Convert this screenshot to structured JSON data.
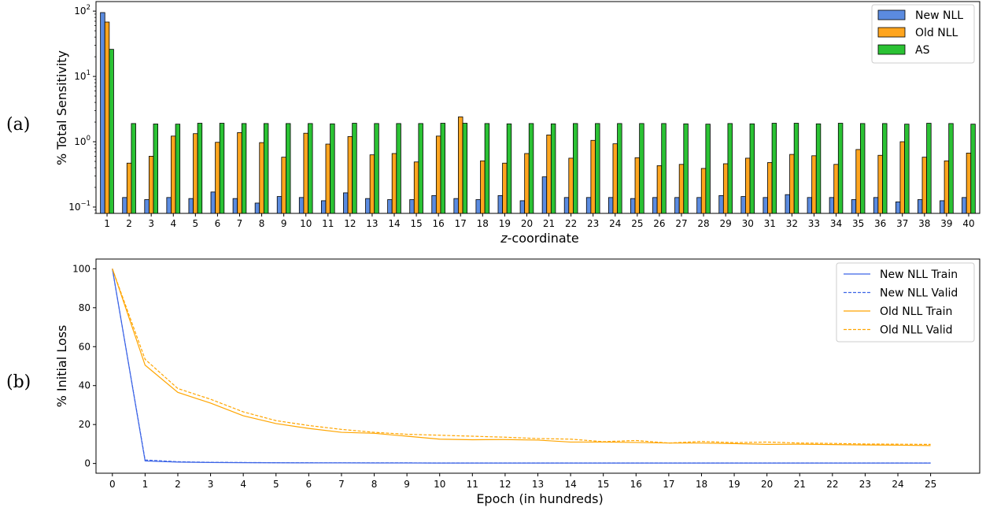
{
  "panels": {
    "a_label": "(a)",
    "b_label": "(b)"
  },
  "chart_data": [
    {
      "type": "bar",
      "xlabel_italic": "z",
      "xlabel_rest": "-coordinate",
      "ylabel": "% Total Sensitivity",
      "yscale": "log",
      "ylim": [
        0.08,
        140
      ],
      "yticks": [
        {
          "base": "10",
          "exp": "2",
          "value": 100
        },
        {
          "base": "10",
          "exp": "1",
          "value": 10
        },
        {
          "base": "10",
          "exp": "0",
          "value": 1
        },
        {
          "base": "10",
          "exp": "−1",
          "value": 0.1
        }
      ],
      "legend_position": "top-right",
      "categories": [
        "1",
        "2",
        "3",
        "4",
        "5",
        "6",
        "7",
        "8",
        "9",
        "10",
        "11",
        "12",
        "13",
        "14",
        "15",
        "16",
        "17",
        "18",
        "19",
        "20",
        "21",
        "22",
        "23",
        "24",
        "25",
        "26",
        "27",
        "28",
        "29",
        "30",
        "31",
        "32",
        "33",
        "34",
        "35",
        "36",
        "37",
        "38",
        "39",
        "40"
      ],
      "series": [
        {
          "name": "New NLL",
          "color": "#5b8be0",
          "values": [
            95,
            0.14,
            0.13,
            0.14,
            0.135,
            0.17,
            0.135,
            0.115,
            0.145,
            0.14,
            0.125,
            0.165,
            0.135,
            0.13,
            0.13,
            0.15,
            0.135,
            0.13,
            0.15,
            0.125,
            0.29,
            0.14,
            0.14,
            0.14,
            0.135,
            0.14,
            0.14,
            0.14,
            0.15,
            0.145,
            0.14,
            0.155,
            0.14,
            0.14,
            0.13,
            0.14,
            0.12,
            0.13,
            0.125,
            0.14
          ]
        },
        {
          "name": "Old NLL",
          "color": "#ffa51e",
          "values": [
            68,
            0.47,
            0.6,
            1.22,
            1.33,
            0.98,
            1.38,
            0.97,
            0.58,
            1.35,
            0.92,
            1.2,
            0.63,
            0.66,
            0.49,
            1.22,
            2.4,
            0.51,
            0.47,
            0.66,
            1.27,
            0.56,
            1.05,
            0.93,
            0.57,
            0.43,
            0.45,
            0.39,
            0.46,
            0.56,
            0.48,
            0.64,
            0.61,
            0.45,
            0.76,
            0.62,
            1.0,
            0.58,
            0.51,
            0.67
          ]
        },
        {
          "name": "AS",
          "color": "#2bc234",
          "values": [
            26,
            1.9,
            1.87,
            1.86,
            1.92,
            1.92,
            1.9,
            1.9,
            1.9,
            1.9,
            1.88,
            1.92,
            1.9,
            1.9,
            1.9,
            1.92,
            1.92,
            1.9,
            1.88,
            1.9,
            1.88,
            1.9,
            1.9,
            1.9,
            1.9,
            1.9,
            1.88,
            1.86,
            1.9,
            1.88,
            1.92,
            1.92,
            1.88,
            1.92,
            1.9,
            1.9,
            1.86,
            1.92,
            1.9,
            1.86
          ]
        }
      ]
    },
    {
      "type": "line",
      "xlabel": "Epoch (in hundreds)",
      "ylabel": "% Initial Loss",
      "xlim": [
        -0.5,
        26.5
      ],
      "ylim": [
        -5,
        105
      ],
      "xticks": [
        0,
        1,
        2,
        3,
        4,
        5,
        6,
        7,
        8,
        9,
        10,
        11,
        12,
        13,
        14,
        15,
        16,
        17,
        18,
        19,
        20,
        21,
        22,
        23,
        24,
        25
      ],
      "yticks": [
        0,
        20,
        40,
        60,
        80,
        100
      ],
      "legend_position": "top-right",
      "x": [
        0,
        1,
        2,
        3,
        4,
        5,
        6,
        7,
        8,
        9,
        10,
        11,
        12,
        13,
        14,
        15,
        16,
        17,
        18,
        19,
        20,
        21,
        22,
        23,
        24,
        25
      ],
      "series": [
        {
          "name": "New NLL Train",
          "color": "#3c64e6",
          "dash": false,
          "values": [
            100,
            1.3,
            0.7,
            0.5,
            0.4,
            0.35,
            0.3,
            0.3,
            0.25,
            0.25,
            0.2,
            0.2,
            0.2,
            0.2,
            0.2,
            0.2,
            0.2,
            0.2,
            0.2,
            0.2,
            0.2,
            0.2,
            0.2,
            0.2,
            0.2,
            0.2
          ]
        },
        {
          "name": "New NLL Valid",
          "color": "#3c64e6",
          "dash": true,
          "values": [
            100,
            1.8,
            0.9,
            0.6,
            0.5,
            0.4,
            0.35,
            0.3,
            0.3,
            0.3,
            0.25,
            0.25,
            0.25,
            0.25,
            0.25,
            0.25,
            0.25,
            0.25,
            0.25,
            0.25,
            0.25,
            0.25,
            0.25,
            0.25,
            0.25,
            0.25
          ]
        },
        {
          "name": "Old NLL Train",
          "color": "#ffa500",
          "dash": false,
          "values": [
            100,
            50.5,
            36.5,
            31,
            24.5,
            20.5,
            18,
            16,
            15.5,
            14,
            12.5,
            12.2,
            12.3,
            12,
            11,
            11,
            10.8,
            10.5,
            10.5,
            10.2,
            9.8,
            9.9,
            9.7,
            9.5,
            9.4,
            9.2
          ]
        },
        {
          "name": "Old NLL Valid",
          "color": "#ffa500",
          "dash": true,
          "values": [
            100,
            53.5,
            38.5,
            33,
            26.5,
            22,
            19.5,
            17.5,
            16,
            15,
            14.5,
            14,
            13.5,
            12.8,
            12.5,
            11.2,
            11.8,
            10.5,
            11.3,
            10.7,
            11,
            10.5,
            10.3,
            10,
            9.9,
            9.8
          ]
        }
      ]
    }
  ]
}
